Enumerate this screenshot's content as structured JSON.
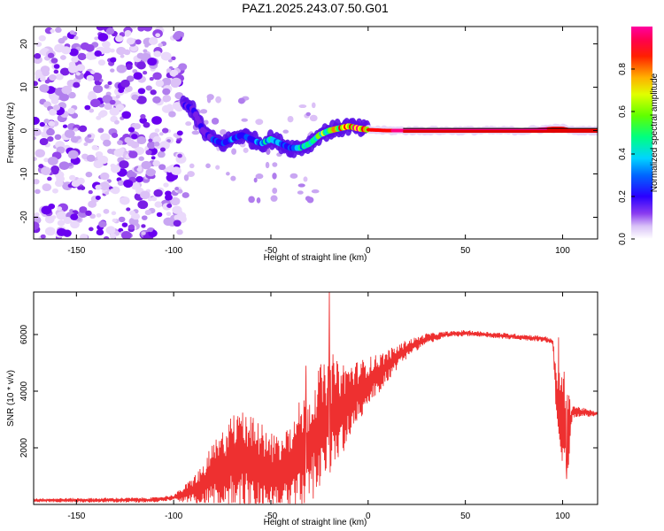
{
  "title": "PAZ1.2025.243.07.50.G01",
  "chart_data": [
    {
      "type": "heatmap",
      "name": "spectrogram",
      "xlabel": "Height of straight line (km)",
      "ylabel": "Frequency (Hz)",
      "xlim": [
        -172,
        118
      ],
      "ylim": [
        -25,
        24
      ],
      "xticks": [
        -150,
        -100,
        -50,
        0,
        50,
        100
      ],
      "yticks": [
        -20,
        -10,
        0,
        10,
        20
      ],
      "colorbar": {
        "label": "Normalized spectral amplitude",
        "range": [
          0,
          1
        ],
        "ticks": [
          0.0,
          0.2,
          0.4,
          0.6,
          0.8
        ],
        "colors": [
          "#ffffff",
          "#c9a6f2",
          "#7a1fe6",
          "#2a00ff",
          "#0055ff",
          "#00c8ff",
          "#00ff80",
          "#80ff00",
          "#ffff00",
          "#ff8000",
          "#ff0000",
          "#ff0080"
        ]
      },
      "ridge": {
        "x": [
          -95,
          -90,
          -85,
          -80,
          -75,
          -70,
          -65,
          -60,
          -55,
          -50,
          -45,
          -40,
          -35,
          -30,
          -25,
          -20,
          -15,
          -10,
          -5,
          0,
          10,
          20,
          40,
          60,
          80,
          95,
          100,
          105,
          118
        ],
        "y": [
          6,
          5,
          0,
          -2,
          -3,
          -2,
          -1,
          -2,
          -3,
          -2,
          -3,
          -4,
          -4,
          -3,
          -1,
          0,
          0.5,
          1,
          0.5,
          0.2,
          0,
          0,
          0,
          0,
          0,
          0.5,
          0.5,
          0,
          0
        ],
        "amplitude": [
          0.25,
          0.25,
          0.2,
          0.3,
          0.35,
          0.35,
          0.3,
          0.35,
          0.4,
          0.45,
          0.4,
          0.4,
          0.45,
          0.5,
          0.55,
          0.65,
          0.75,
          0.8,
          0.85,
          0.9,
          0.95,
          0.97,
          0.98,
          0.98,
          0.98,
          0.95,
          0.9,
          0.95,
          0.95
        ]
      },
      "noise_region": [
        -172,
        -95
      ]
    },
    {
      "type": "line",
      "name": "snr",
      "xlabel": "Height of straight line (km)",
      "ylabel": "SNR (10 * v/v)",
      "color": "#ee3030",
      "xlim": [
        -172,
        118
      ],
      "ylim": [
        0,
        7500
      ],
      "xticks": [
        -150,
        -100,
        -50,
        0,
        50,
        100
      ],
      "yticks": [
        2000,
        4000,
        6000
      ],
      "envelope": {
        "x": [
          -172,
          -140,
          -110,
          -100,
          -95,
          -90,
          -85,
          -80,
          -75,
          -70,
          -65,
          -60,
          -55,
          -50,
          -45,
          -40,
          -35,
          -30,
          -25,
          -20,
          -15,
          -10,
          -5,
          0,
          5,
          10,
          15,
          20,
          30,
          40,
          50,
          60,
          70,
          80,
          90,
          95,
          97,
          100,
          103,
          105,
          110,
          118
        ],
        "y": [
          150,
          150,
          160,
          250,
          350,
          500,
          700,
          1000,
          1200,
          1500,
          1700,
          1400,
          1200,
          1000,
          1100,
          1200,
          1800,
          2000,
          2800,
          3000,
          3300,
          3600,
          4000,
          4300,
          4600,
          4900,
          5200,
          5500,
          5850,
          6000,
          6050,
          6000,
          5950,
          5900,
          5850,
          5750,
          3500,
          3200,
          2500,
          3300,
          3250,
          3200
        ]
      },
      "noise_amplitude": {
        "x": [
          -172,
          -100,
          -90,
          -75,
          -65,
          -55,
          -45,
          -35,
          -25,
          -15,
          -5,
          5,
          15,
          25,
          40,
          95,
          97,
          100,
          103,
          105,
          118
        ],
        "y": [
          60,
          80,
          400,
          1200,
          1500,
          1400,
          1200,
          1600,
          1800,
          1500,
          900,
          600,
          350,
          200,
          90,
          90,
          900,
          1500,
          1200,
          200,
          60
        ]
      },
      "spikes": [
        {
          "x": -32,
          "y": 4900
        },
        {
          "x": -20,
          "y": 7500
        },
        {
          "x": -18,
          "y": 5300
        },
        {
          "x": 98,
          "y": 5900
        },
        {
          "x": 102,
          "y": 900
        }
      ]
    }
  ]
}
